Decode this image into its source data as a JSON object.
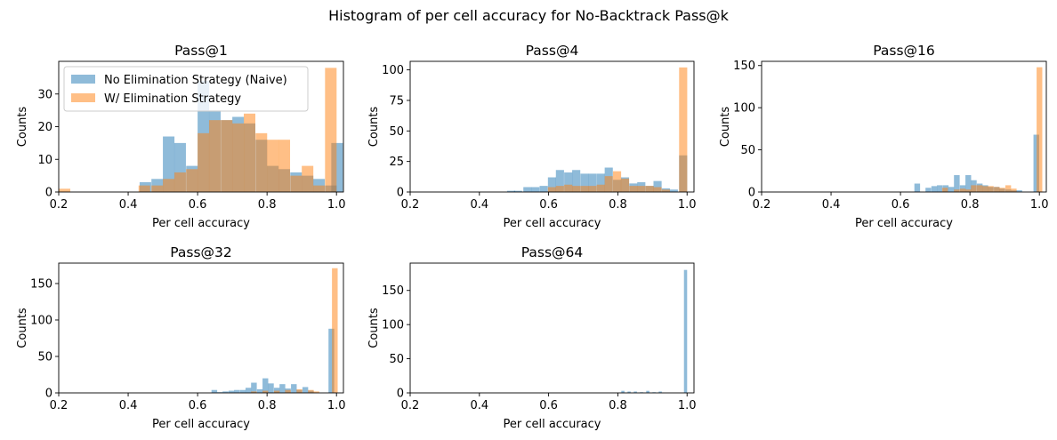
{
  "suptitle": "Histogram of per cell accuracy for No-Backtrack Pass@k",
  "colors": {
    "naive": "#1f77b4",
    "elim": "#ff7f0e"
  },
  "chart_data": [
    {
      "type": "bar",
      "title": "Pass@1",
      "xlabel": "Per cell accuracy",
      "ylabel": "Counts",
      "xlim": [
        0.2,
        1.02
      ],
      "ylim": [
        0,
        40
      ],
      "xticks": [
        "0.2",
        "0.4",
        "0.6",
        "0.8",
        "1.0"
      ],
      "yticks": [
        "0",
        "10",
        "20",
        "30"
      ],
      "bin_width": 0.0333,
      "legend": {
        "placement": "upper-left",
        "entries": [
          "No Elimination Strategy (Naive)",
          "W/ Elimination Strategy"
        ]
      },
      "series": [
        {
          "name": "No Elimination Strategy (Naive)",
          "color": "naive",
          "alpha": 0.5,
          "bins": [
            [
              0.433,
              3
            ],
            [
              0.467,
              4
            ],
            [
              0.5,
              17
            ],
            [
              0.533,
              15
            ],
            [
              0.567,
              8
            ],
            [
              0.6,
              34
            ],
            [
              0.633,
              25
            ],
            [
              0.667,
              22
            ],
            [
              0.7,
              23
            ],
            [
              0.733,
              21
            ],
            [
              0.767,
              16
            ],
            [
              0.8,
              8
            ],
            [
              0.833,
              7
            ],
            [
              0.867,
              6
            ],
            [
              0.9,
              5
            ],
            [
              0.933,
              4
            ],
            [
              0.967,
              2
            ],
            [
              0.985,
              15
            ]
          ]
        },
        {
          "name": "W/ Elimination Strategy",
          "color": "elim",
          "alpha": 0.5,
          "bins": [
            [
              0.2,
              1
            ],
            [
              0.43,
              2
            ],
            [
              0.467,
              2
            ],
            [
              0.5,
              4
            ],
            [
              0.533,
              6
            ],
            [
              0.567,
              7
            ],
            [
              0.6,
              18
            ],
            [
              0.633,
              22
            ],
            [
              0.667,
              22
            ],
            [
              0.7,
              21
            ],
            [
              0.733,
              24
            ],
            [
              0.767,
              18
            ],
            [
              0.8,
              16
            ],
            [
              0.833,
              16
            ],
            [
              0.867,
              5
            ],
            [
              0.9,
              8
            ],
            [
              0.933,
              2
            ],
            [
              0.967,
              38
            ]
          ]
        }
      ]
    },
    {
      "type": "bar",
      "title": "Pass@4",
      "xlabel": "Per cell accuracy",
      "ylabel": "Counts",
      "xlim": [
        0.2,
        1.02
      ],
      "ylim": [
        0,
        107
      ],
      "xticks": [
        "0.2",
        "0.4",
        "0.6",
        "0.8",
        "1.0"
      ],
      "yticks": [
        "0",
        "25",
        "50",
        "75",
        "100"
      ],
      "bin_width": 0.0235,
      "series": [
        {
          "name": "No Elimination Strategy (Naive)",
          "color": "naive",
          "alpha": 0.5,
          "bins": [
            [
              0.48,
              1
            ],
            [
              0.5,
              1
            ],
            [
              0.527,
              4
            ],
            [
              0.55,
              4
            ],
            [
              0.574,
              5
            ],
            [
              0.598,
              12
            ],
            [
              0.621,
              18
            ],
            [
              0.645,
              16
            ],
            [
              0.668,
              18
            ],
            [
              0.692,
              15
            ],
            [
              0.715,
              15
            ],
            [
              0.739,
              15
            ],
            [
              0.762,
              20
            ],
            [
              0.786,
              10
            ],
            [
              0.809,
              12
            ],
            [
              0.833,
              7
            ],
            [
              0.856,
              8
            ],
            [
              0.88,
              5
            ],
            [
              0.903,
              9
            ],
            [
              0.927,
              3
            ],
            [
              0.95,
              2
            ],
            [
              0.977,
              30
            ]
          ]
        },
        {
          "name": "W/ Elimination Strategy",
          "color": "elim",
          "alpha": 0.5,
          "bins": [
            [
              0.598,
              4
            ],
            [
              0.621,
              5
            ],
            [
              0.645,
              6
            ],
            [
              0.668,
              5
            ],
            [
              0.692,
              5
            ],
            [
              0.715,
              5
            ],
            [
              0.739,
              6
            ],
            [
              0.762,
              13
            ],
            [
              0.786,
              17
            ],
            [
              0.809,
              11
            ],
            [
              0.833,
              5
            ],
            [
              0.856,
              5
            ],
            [
              0.88,
              5
            ],
            [
              0.903,
              4
            ],
            [
              0.927,
              2
            ],
            [
              0.977,
              102
            ]
          ]
        }
      ]
    },
    {
      "type": "bar",
      "title": "Pass@16",
      "xlabel": "Per cell accuracy",
      "ylabel": "Counts",
      "xlim": [
        0.2,
        1.02
      ],
      "ylim": [
        0,
        155
      ],
      "xticks": [
        "0.2",
        "0.4",
        "0.6",
        "0.8",
        "1.0"
      ],
      "yticks": [
        "0",
        "50",
        "100",
        "150"
      ],
      "bin_width": 0.0164,
      "series": [
        {
          "name": "No Elimination Strategy (Naive)",
          "color": "naive",
          "alpha": 0.5,
          "bins": [
            [
              0.64,
              10
            ],
            [
              0.672,
              5
            ],
            [
              0.689,
              7
            ],
            [
              0.705,
              8
            ],
            [
              0.722,
              8
            ],
            [
              0.738,
              6
            ],
            [
              0.754,
              20
            ],
            [
              0.771,
              8
            ],
            [
              0.787,
              20
            ],
            [
              0.803,
              14
            ],
            [
              0.82,
              10
            ],
            [
              0.836,
              8
            ],
            [
              0.852,
              6
            ],
            [
              0.869,
              6
            ],
            [
              0.885,
              4
            ],
            [
              0.902,
              3
            ],
            [
              0.918,
              2
            ],
            [
              0.934,
              2
            ],
            [
              0.983,
              68
            ]
          ]
        },
        {
          "name": "W/ Elimination Strategy",
          "color": "elim",
          "alpha": 0.5,
          "bins": [
            [
              0.72,
              5
            ],
            [
              0.754,
              3
            ],
            [
              0.771,
              4
            ],
            [
              0.787,
              3
            ],
            [
              0.803,
              8
            ],
            [
              0.82,
              8
            ],
            [
              0.836,
              7
            ],
            [
              0.852,
              7
            ],
            [
              0.869,
              6
            ],
            [
              0.885,
              5
            ],
            [
              0.902,
              8
            ],
            [
              0.918,
              4
            ],
            [
              0.992,
              148
            ]
          ]
        }
      ]
    },
    {
      "type": "bar",
      "title": "Pass@32",
      "xlabel": "Per cell accuracy",
      "ylabel": "Counts",
      "xlim": [
        0.2,
        1.02
      ],
      "ylim": [
        0,
        178
      ],
      "xticks": [
        "0.2",
        "0.4",
        "0.6",
        "0.8",
        "1.0"
      ],
      "yticks": [
        "0",
        "50",
        "100",
        "150"
      ],
      "bin_width": 0.0164,
      "series": [
        {
          "name": "No Elimination Strategy (Naive)",
          "color": "naive",
          "alpha": 0.5,
          "bins": [
            [
              0.64,
              4
            ],
            [
              0.656,
              1
            ],
            [
              0.672,
              2
            ],
            [
              0.689,
              3
            ],
            [
              0.705,
              4
            ],
            [
              0.722,
              4
            ],
            [
              0.738,
              7
            ],
            [
              0.754,
              14
            ],
            [
              0.771,
              5
            ],
            [
              0.787,
              20
            ],
            [
              0.803,
              13
            ],
            [
              0.82,
              7
            ],
            [
              0.836,
              12
            ],
            [
              0.852,
              6
            ],
            [
              0.869,
              12
            ],
            [
              0.885,
              4
            ],
            [
              0.902,
              8
            ],
            [
              0.918,
              3
            ],
            [
              0.977,
              88
            ]
          ]
        },
        {
          "name": "W/ Elimination Strategy",
          "color": "elim",
          "alpha": 0.5,
          "bins": [
            [
              0.754,
              2
            ],
            [
              0.787,
              3
            ],
            [
              0.82,
              3
            ],
            [
              0.852,
              4
            ],
            [
              0.885,
              5
            ],
            [
              0.918,
              4
            ],
            [
              0.934,
              2
            ],
            [
              0.987,
              171
            ]
          ]
        }
      ]
    },
    {
      "type": "bar",
      "title": "Pass@64",
      "xlabel": "Per cell accuracy",
      "ylabel": "Counts",
      "xlim": [
        0.2,
        1.02
      ],
      "ylim": [
        0,
        190
      ],
      "xticks": [
        "0.2",
        "0.4",
        "0.6",
        "0.8",
        "1.0"
      ],
      "yticks": [
        "0",
        "50",
        "100",
        "150"
      ],
      "bin_width": 0.0092,
      "series": [
        {
          "name": "No Elimination Strategy (Naive)",
          "color": "naive",
          "alpha": 0.5,
          "bins": [
            [
              0.81,
              3
            ],
            [
              0.828,
              2
            ],
            [
              0.846,
              2
            ],
            [
              0.864,
              1
            ],
            [
              0.882,
              3
            ],
            [
              0.9,
              1
            ],
            [
              0.918,
              2
            ],
            [
              0.991,
              180
            ]
          ]
        },
        {
          "name": "W/ Elimination Strategy",
          "color": "elim",
          "alpha": 0.5,
          "bins": []
        }
      ]
    }
  ]
}
